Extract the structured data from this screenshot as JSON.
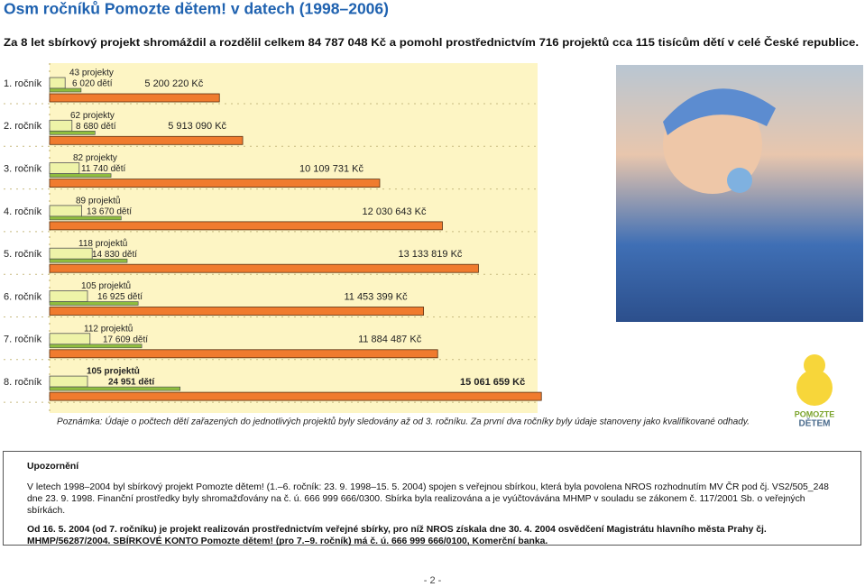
{
  "title": "Osm ročníků Pomozte dětem! v datech (1998–2006)",
  "subtitle": "Za 8 let sbírkový projekt shromáždil a rozdělil celkem 84 787 048 Kč a pomohl prostřednictvím 716 projektů cca 115 tisícům dětí v celé České republice.",
  "chart_data": {
    "type": "bar",
    "categories": [
      "1. ročník",
      "2. ročník",
      "3. ročník",
      "4. ročník",
      "5. ročník",
      "6. ročník",
      "7. ročník",
      "8. ročník"
    ],
    "series": [
      {
        "color": "#eef3a8",
        "values": [
          43,
          62,
          82,
          89,
          118,
          105,
          112,
          105
        ],
        "value_labels": [
          "43 projekty",
          "62 projekty",
          "82 projekty",
          "89 projektů",
          "118 projektů",
          "105 projektů",
          "112 projektů",
          "105 projektů"
        ]
      },
      {
        "color": "#8fbd3e",
        "values": [
          6020,
          8680,
          11740,
          13670,
          14830,
          16925,
          17609,
          24951
        ],
        "value_labels": [
          "6 020 dětí",
          "8 680 dětí",
          "11 740 dětí",
          "13 670 dětí",
          "14 830 dětí",
          "16 925 dětí",
          "17 609 dětí",
          "24 951 dětí"
        ]
      },
      {
        "color": "#f07b2e",
        "values": [
          5200220,
          5913090,
          10109731,
          12030643,
          13133819,
          11453399,
          11884487,
          15061659
        ],
        "value_labels": [
          "5 200 220 Kč",
          "5 913 090 Kč",
          "10 109 731 Kč",
          "12 030 643 Kč",
          "13 133 819 Kč",
          "11 453 399 Kč",
          "11 884 487 Kč",
          "15 061 659 Kč"
        ]
      }
    ]
  },
  "note": "Poznámka: Údaje o počtech dětí zařazených do jednotlivých projektů byly sledovány až od 3. ročníku. Za první dva ročníky byly údaje stanoveny jako kvalifikované odhady.",
  "logo": {
    "line1": "POMOZTE",
    "line2": "DĚTEM"
  },
  "notice": {
    "heading": "Upozornění",
    "paragraph1": "V letech 1998–2004 byl sbírkový projekt Pomozte dětem! (1.–6. ročník: 23. 9. 1998–15. 5. 2004) spojen s veřejnou sbírkou, která byla povolena NROS rozhodnutím MV ČR pod čj. VS2/505_248 dne 23. 9. 1998. Finanční prostředky byly shromažďovány na č. ú. 666 999 666/0300. Sbírka byla realizována a je vyúčtovávána MHMP v souladu se zákonem č. 117/2001 Sb. o veřejných sbírkách.",
    "paragraph2": "Od 16. 5. 2004 (od 7. ročníku) je projekt realizován prostřednictvím veřejné sbírky, pro níž NROS získala dne 30. 4. 2004 osvědčení Magistrátu hlavního města Prahy čj. MHMP/56287/2004. SBÍRKOVÉ KONTO Pomozte dětem! (pro 7.–9. ročník) má č. ú. 666 999 666/0100, Komerční banka."
  },
  "footer": "- 2 -"
}
